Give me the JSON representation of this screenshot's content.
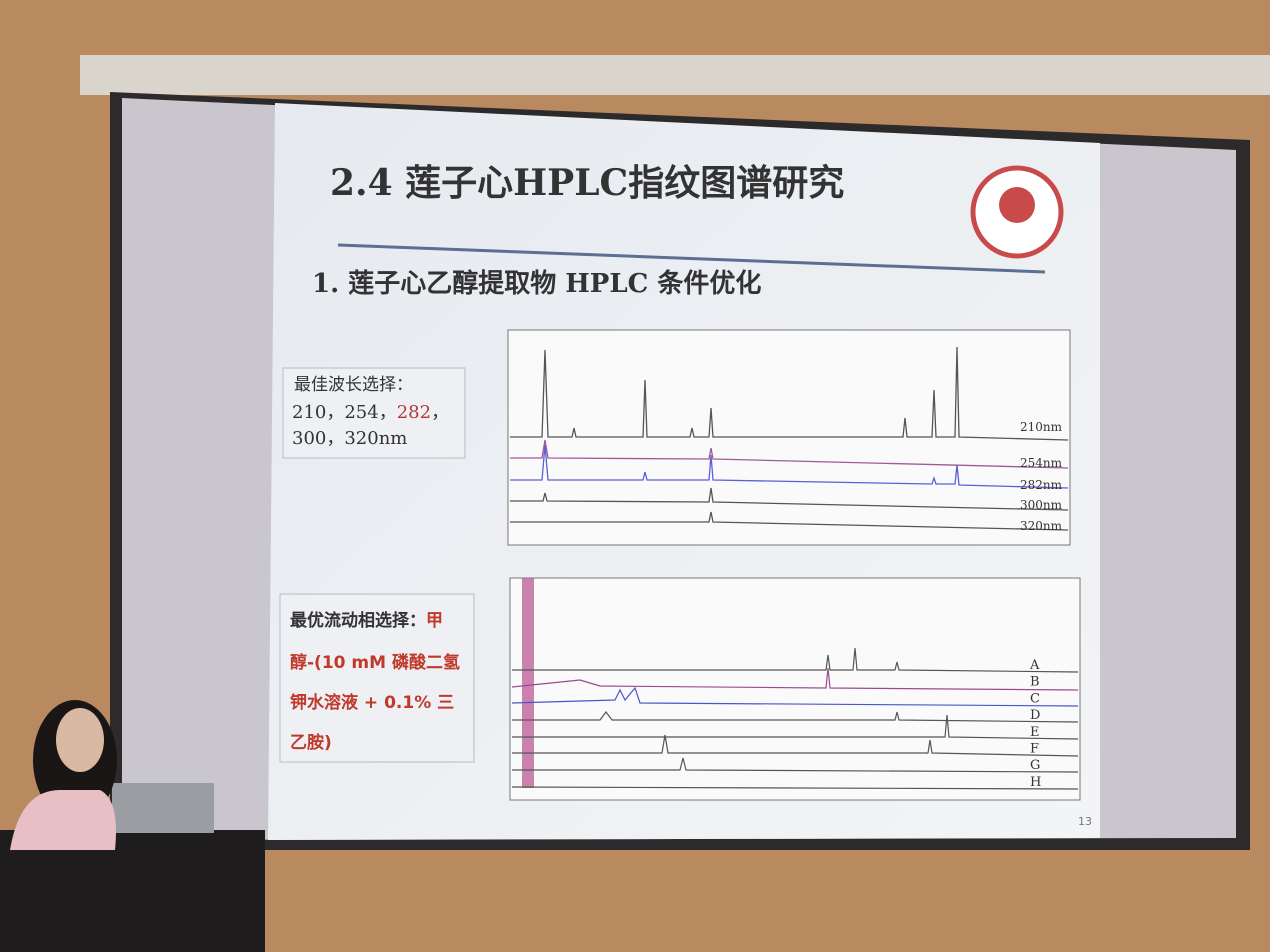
{
  "slide": {
    "title": "2.4 莲子心HPLC指纹图谱研究",
    "subtitle": "1. 莲子心乙醇提取物 HPLC 条件优化",
    "wavelength_box": {
      "label": "最佳波长选择：",
      "line1_a": "210，254，",
      "line1_highlight": "282",
      "line1_b": "，",
      "line2": "300，320nm"
    },
    "wavelength_traces": [
      "210nm",
      "254nm",
      "282nm",
      "300nm",
      "320nm"
    ],
    "mobile_phase_box": {
      "label": "最优流动相选择：",
      "line1_red": "甲",
      "line2_red": "醇-(10 mM 磷酸二氢",
      "line3_red": "钾水溶液 + 0.1% 三",
      "line4_red": "乙胺)"
    },
    "mobile_phase_traces": [
      "A",
      "B",
      "C",
      "D",
      "E",
      "F",
      "G",
      "H"
    ],
    "page_number": "13"
  }
}
